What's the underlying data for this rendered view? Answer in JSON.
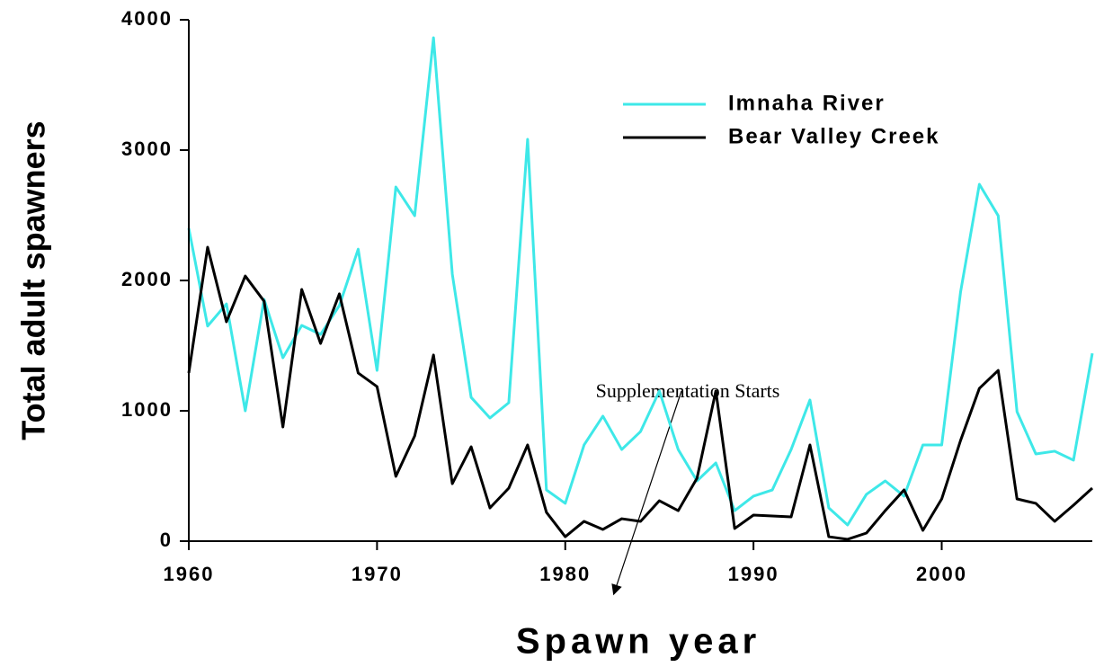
{
  "chart_data": {
    "type": "line",
    "xlabel": "Spawn year",
    "ylabel": "Total adult spawners",
    "annotation": "Supplementation Starts",
    "x": [
      1960,
      1961,
      1962,
      1963,
      1964,
      1965,
      1966,
      1967,
      1968,
      1969,
      1970,
      1971,
      1972,
      1973,
      1974,
      1975,
      1976,
      1977,
      1978,
      1979,
      1980,
      1981,
      1982,
      1983,
      1984,
      1985,
      1986,
      1987,
      1988,
      1989,
      1990,
      1991,
      1992,
      1993,
      1994,
      1995,
      1996,
      1997,
      1998,
      1999,
      2000,
      2001,
      2002,
      2003,
      2004,
      2005,
      2006,
      2007,
      2008
    ],
    "series": [
      {
        "name": "Imnaha River",
        "color": "#3ee8e8",
        "values": [
          2400,
          1650,
          1820,
          1000,
          1855,
          1407,
          1655,
          1586,
          1807,
          2240,
          1310,
          2717,
          2497,
          3862,
          2048,
          1103,
          945,
          1062,
          3083,
          393,
          290,
          738,
          959,
          703,
          841,
          1152,
          703,
          462,
          600,
          234,
          345,
          393,
          703,
          1083,
          255,
          124,
          359,
          462,
          345,
          738,
          738,
          1910,
          2738,
          2497,
          993,
          669,
          690,
          621,
          1441
        ]
      },
      {
        "name": "Bear Valley Creek",
        "color": "#000000",
        "values": [
          1290,
          2255,
          1683,
          2034,
          1841,
          876,
          1931,
          1517,
          1897,
          1290,
          1186,
          497,
          807,
          1428,
          441,
          724,
          255,
          407,
          738,
          221,
          34,
          152,
          90,
          172,
          152,
          310,
          234,
          483,
          1152,
          97,
          200,
          193,
          186,
          738,
          34,
          14,
          62,
          234,
          393,
          83,
          324,
          772,
          1172,
          1310,
          324,
          290,
          152,
          276,
          407
        ]
      }
    ],
    "xlim": [
      1960,
      2008
    ],
    "xticks": [
      1960,
      1970,
      1980,
      1990,
      2000
    ],
    "ylim": [
      0,
      4000
    ],
    "yticks": [
      0,
      1000,
      2000,
      3000,
      4000
    ]
  }
}
